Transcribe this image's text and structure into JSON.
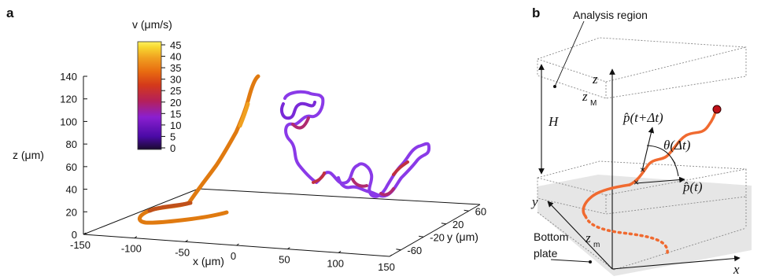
{
  "panel_a": {
    "label": "a",
    "z_axis": {
      "label": "z (μm)",
      "ticks": [
        "0",
        "20",
        "40",
        "60",
        "80",
        "100",
        "120",
        "140"
      ]
    },
    "x_axis": {
      "label": "x (μm)",
      "ticks": [
        "-150",
        "-100",
        "-50",
        "0",
        "50",
        "100",
        "150"
      ]
    },
    "y_axis": {
      "label": "y (μm)",
      "ticks": [
        "-60",
        "-20",
        "20",
        "60"
      ]
    },
    "colorbar": {
      "label": "v  (μm/s)",
      "ticks": [
        "45",
        "40",
        "35",
        "30",
        "25",
        "20",
        "15",
        "10",
        "5",
        "0"
      ],
      "colors": [
        "#1a0a2e",
        "#4a0aa6",
        "#8a1fd0",
        "#b4205a",
        "#d43a1a",
        "#e86a10",
        "#f0a020",
        "#f8d830",
        "#fff060"
      ]
    }
  },
  "panel_b": {
    "label": "b",
    "analysis_region": "Analysis region",
    "H": "H",
    "z": "z",
    "zM": "z",
    "zM_sub": "M",
    "zm": "z",
    "zm_sub": "m",
    "y": "y",
    "x": "x",
    "p_future": "p̂(t+Δt)",
    "p_now": "p̂(t)",
    "theta": "θ(Δt)",
    "bottom_plate_1": "Bottom",
    "bottom_plate_2": "plate"
  }
}
